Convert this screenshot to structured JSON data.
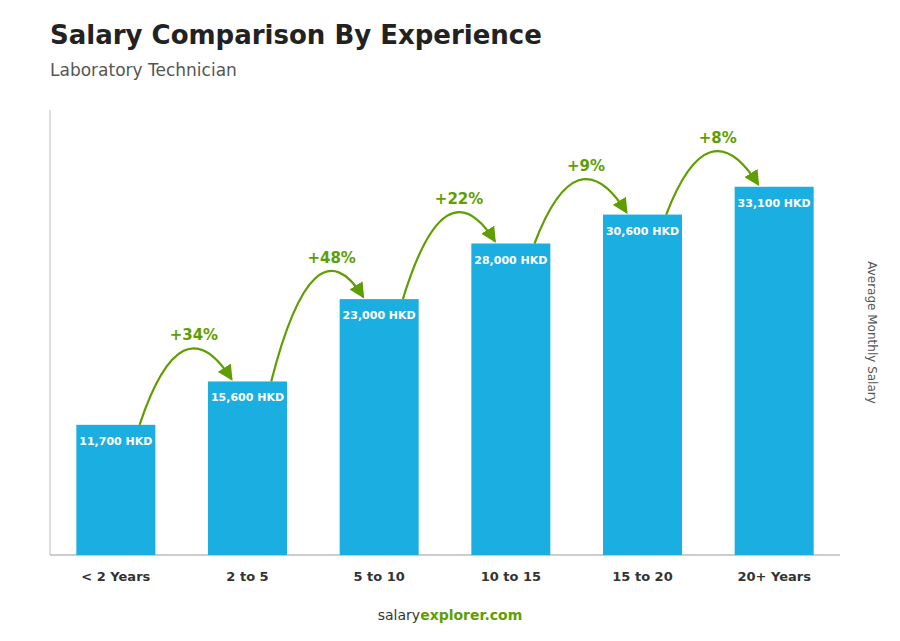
{
  "chart_data": {
    "type": "bar",
    "title": "Salary Comparison By Experience",
    "subtitle": "Laboratory Technician",
    "ylabel": "Average Monthly Salary",
    "categories": [
      "< 2 Years",
      "2 to 5",
      "5 to 10",
      "10 to 15",
      "15 to 20",
      "20+ Years"
    ],
    "values": [
      11700,
      15600,
      23000,
      28000,
      30600,
      33100
    ],
    "value_labels": [
      "11,700 HKD",
      "15,600 HKD",
      "23,000 HKD",
      "28,000 HKD",
      "30,600 HKD",
      "33,100 HKD"
    ],
    "data_labels": true,
    "annotations": [
      "+34%",
      "+48%",
      "+22%",
      "+9%",
      "+8%"
    ],
    "footer": [
      "salary",
      "explorer.com"
    ],
    "color": "#1BAEE0",
    "ylim": [
      0,
      40000
    ],
    "grid": false,
    "tick_labels": "x"
  }
}
